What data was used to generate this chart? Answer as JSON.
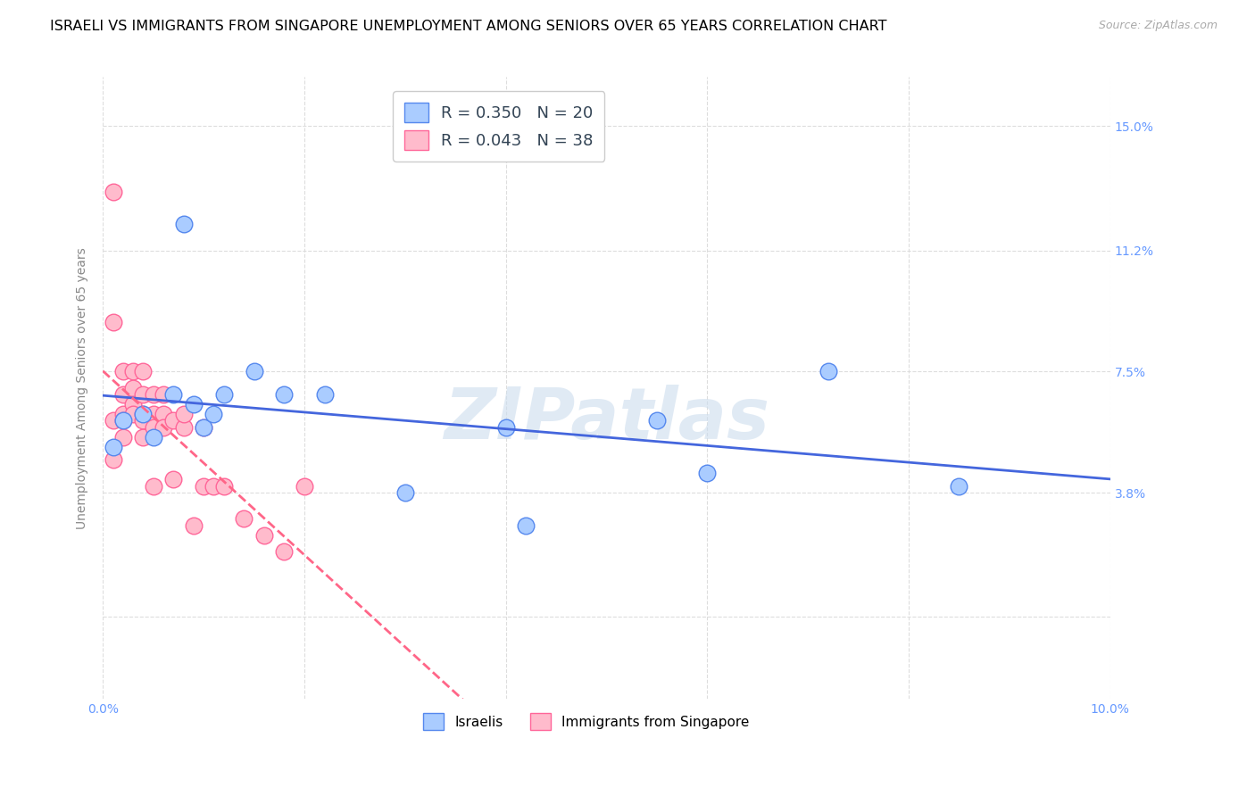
{
  "title": "ISRAELI VS IMMIGRANTS FROM SINGAPORE UNEMPLOYMENT AMONG SENIORS OVER 65 YEARS CORRELATION CHART",
  "source": "Source: ZipAtlas.com",
  "ylabel": "Unemployment Among Seniors over 65 years",
  "xlim": [
    0.0,
    0.1
  ],
  "ylim": [
    -0.025,
    0.165
  ],
  "yticks": [
    0.0,
    0.038,
    0.075,
    0.112,
    0.15
  ],
  "ytick_labels": [
    "",
    "3.8%",
    "7.5%",
    "11.2%",
    "15.0%"
  ],
  "xticks": [
    0.0,
    0.02,
    0.04,
    0.06,
    0.08,
    0.1
  ],
  "xtick_labels": [
    "0.0%",
    "",
    "",
    "",
    "",
    "10.0%"
  ],
  "background_color": "#ffffff",
  "grid_color": "#dddddd",
  "israelis_color": "#aaccff",
  "immigrants_color": "#ffbbcc",
  "israelis_edge_color": "#5588ee",
  "immigrants_edge_color": "#ff6699",
  "trendline_israelis_color": "#4466dd",
  "trendline_immigrants_color": "#ff6688",
  "legend_israelis_R": "0.350",
  "legend_israelis_N": "20",
  "legend_immigrants_R": "0.043",
  "legend_immigrants_N": "38",
  "tick_color": "#6699ff",
  "israelis_x": [
    0.001,
    0.002,
    0.004,
    0.005,
    0.007,
    0.008,
    0.009,
    0.01,
    0.011,
    0.012,
    0.015,
    0.018,
    0.022,
    0.03,
    0.04,
    0.042,
    0.055,
    0.06,
    0.072,
    0.085
  ],
  "israelis_y": [
    0.052,
    0.06,
    0.062,
    0.055,
    0.068,
    0.12,
    0.065,
    0.058,
    0.062,
    0.068,
    0.075,
    0.068,
    0.068,
    0.038,
    0.058,
    0.028,
    0.06,
    0.044,
    0.075,
    0.04
  ],
  "immigrants_x": [
    0.001,
    0.001,
    0.001,
    0.001,
    0.002,
    0.002,
    0.002,
    0.002,
    0.002,
    0.003,
    0.003,
    0.003,
    0.003,
    0.004,
    0.004,
    0.004,
    0.004,
    0.004,
    0.005,
    0.005,
    0.005,
    0.005,
    0.006,
    0.006,
    0.006,
    0.007,
    0.007,
    0.008,
    0.008,
    0.009,
    0.01,
    0.01,
    0.011,
    0.012,
    0.014,
    0.016,
    0.018,
    0.02
  ],
  "immigrants_y": [
    0.13,
    0.09,
    0.06,
    0.048,
    0.075,
    0.068,
    0.062,
    0.06,
    0.055,
    0.075,
    0.07,
    0.065,
    0.062,
    0.075,
    0.068,
    0.062,
    0.06,
    0.055,
    0.068,
    0.062,
    0.058,
    0.04,
    0.068,
    0.062,
    0.058,
    0.06,
    0.042,
    0.058,
    0.062,
    0.028,
    0.058,
    0.04,
    0.04,
    0.04,
    0.03,
    0.025,
    0.02,
    0.04
  ],
  "watermark": "ZIPatlas",
  "marker_size": 180
}
